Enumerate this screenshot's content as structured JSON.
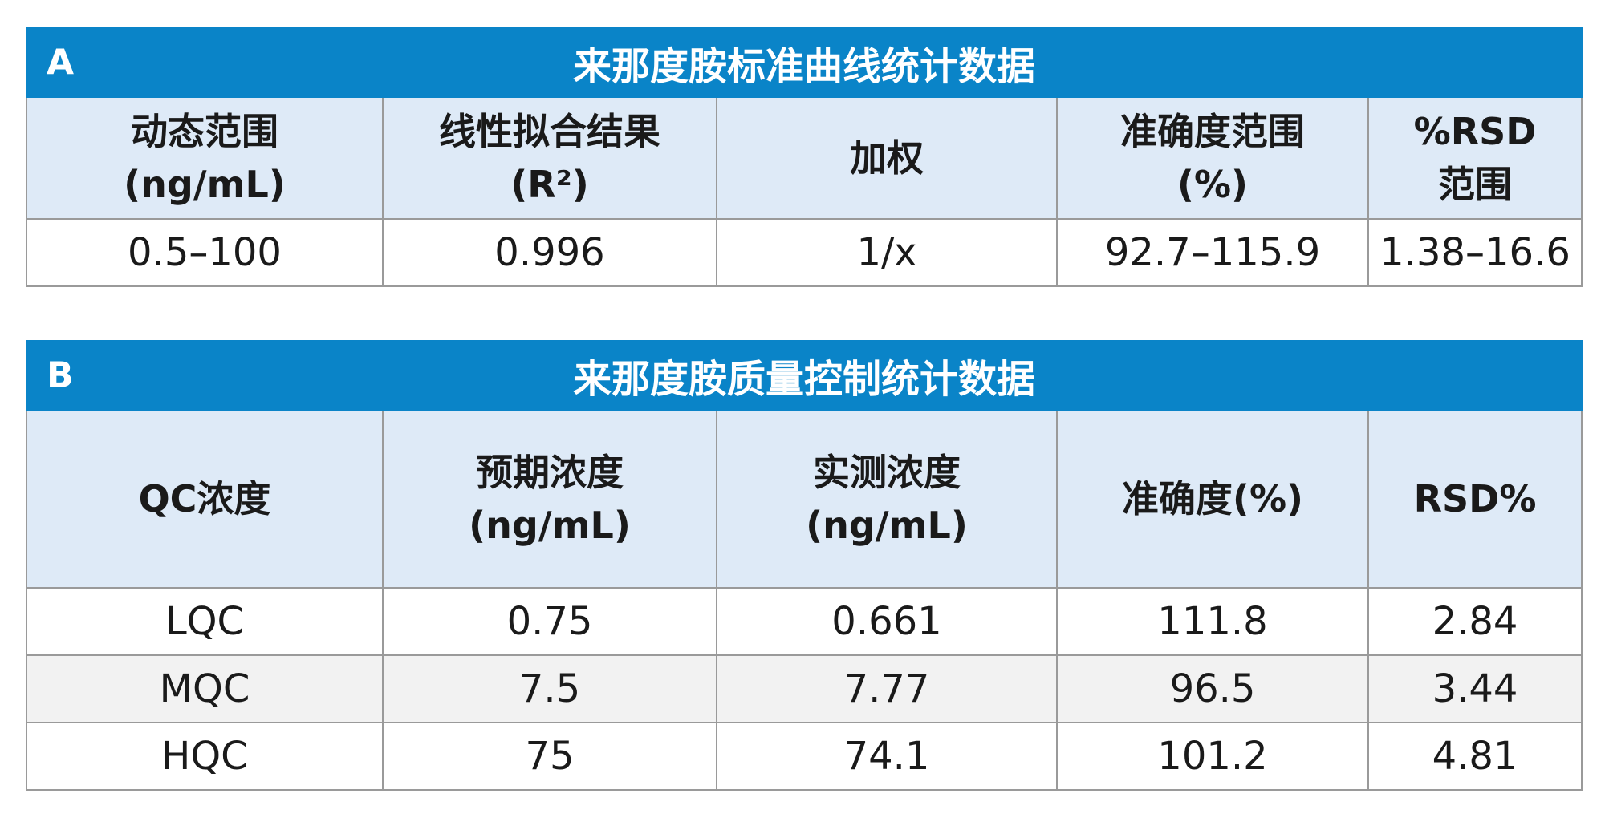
{
  "table_a": {
    "letter": "A",
    "title": "来那度胺标准曲线统计数据",
    "headers": [
      [
        "动态范围",
        "(ng/mL)"
      ],
      [
        "线性拟合结果",
        "(R²)"
      ],
      [
        "加权"
      ],
      [
        "准确度范围",
        "(%)"
      ],
      [
        "%RSD",
        "范围"
      ]
    ],
    "rows": [
      [
        "0.5–100",
        "0.996",
        "1/x",
        "92.7–115.9",
        "1.38–16.6"
      ]
    ]
  },
  "table_b": {
    "letter": "B",
    "title": "来那度胺质量控制统计数据",
    "headers": [
      [
        "QC浓度"
      ],
      [
        "预期浓度",
        "(ng/mL)"
      ],
      [
        "实测浓度",
        "(ng/mL)"
      ],
      [
        "准确度(%)"
      ],
      [
        "RSD%"
      ]
    ],
    "rows": [
      [
        "LQC",
        "0.75",
        "0.661",
        "111.8",
        "2.84"
      ],
      [
        "MQC",
        "7.5",
        "7.77",
        "96.5",
        "3.44"
      ],
      [
        "HQC",
        "75",
        "74.1",
        "101.2",
        "4.81"
      ]
    ]
  }
}
